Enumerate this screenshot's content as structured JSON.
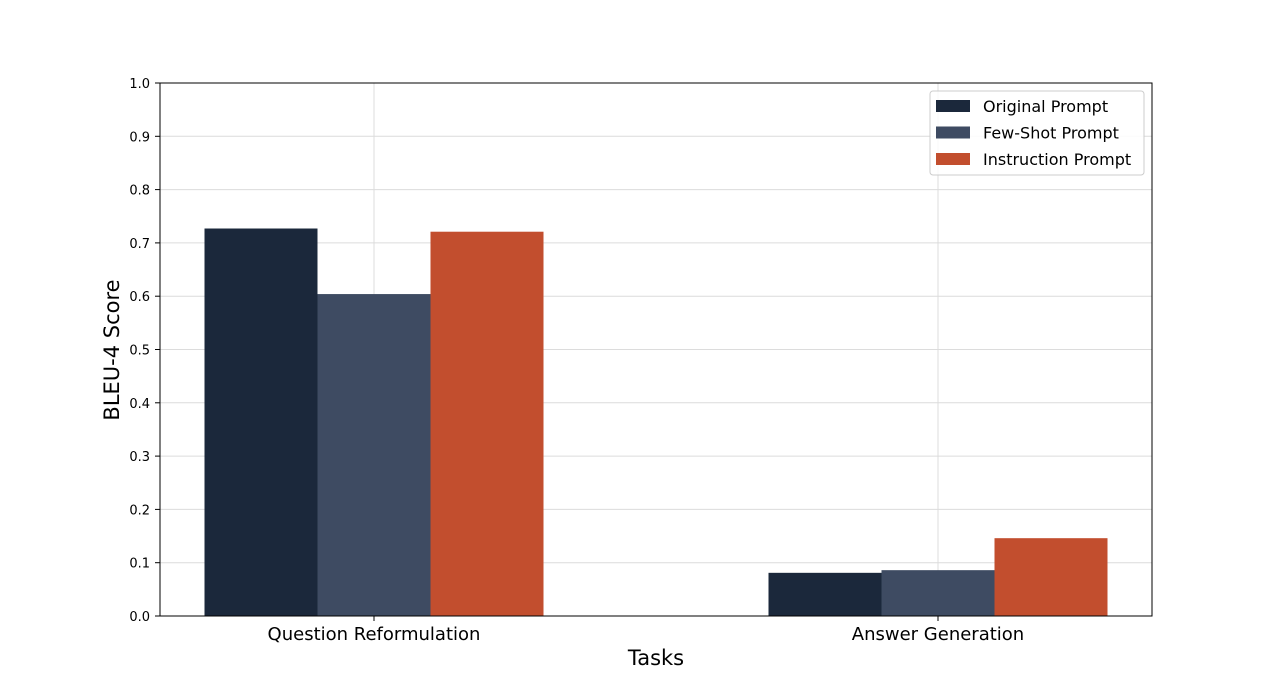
{
  "chart_data": {
    "type": "bar",
    "title": "",
    "xlabel": "Tasks",
    "ylabel": "BLEU-4 Score",
    "categories": [
      "Question Reformulation",
      "Answer Generation"
    ],
    "series": [
      {
        "name": "Original Prompt",
        "values": [
          0.727,
          0.081
        ],
        "color": "#1b283b"
      },
      {
        "name": "Few-Shot Prompt",
        "values": [
          0.604,
          0.086
        ],
        "color": "#3e4b62"
      },
      {
        "name": "Instruction Prompt",
        "values": [
          0.721,
          0.146
        ],
        "color": "#c24e2e"
      }
    ],
    "ylim": [
      0,
      1.0
    ],
    "yticks": [
      "0.0",
      "0.1",
      "0.2",
      "0.3",
      "0.4",
      "0.5",
      "0.6",
      "0.7",
      "0.8",
      "0.9",
      "1.0"
    ],
    "grid": true,
    "legend_position": "top-right"
  }
}
